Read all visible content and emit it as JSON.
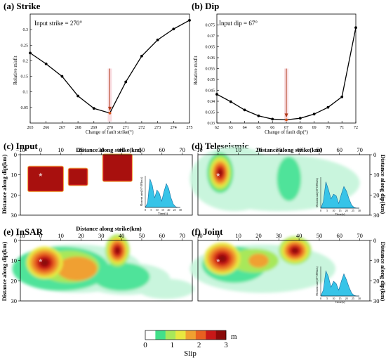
{
  "panels": [
    {
      "id": "a",
      "title": "(a) Strike"
    },
    {
      "id": "b",
      "title": "(b) Dip"
    },
    {
      "id": "c",
      "title": "(c) Input"
    },
    {
      "id": "d",
      "title": "(d) Teleseismic"
    },
    {
      "id": "e",
      "title": "(e) InSAR"
    },
    {
      "id": "f",
      "title": "(f) Joint"
    }
  ],
  "chart_data": [
    {
      "type": "line",
      "title": "(a) Strike",
      "annotation": "Input strike = 270°",
      "xlabel": "Change of fault strike(°)",
      "ylabel": "Relative misfit",
      "xlim": [
        265,
        275
      ],
      "ylim": [
        0.0,
        0.35
      ],
      "xticks": [
        265,
        266,
        267,
        268,
        269,
        270,
        271,
        272,
        273,
        274,
        275
      ],
      "yticks": [
        0.05,
        0.1,
        0.15,
        0.2,
        0.25,
        0.3
      ],
      "x": [
        265,
        266,
        267,
        268,
        269,
        270,
        271,
        272,
        273,
        274,
        275
      ],
      "y": [
        0.225,
        0.19,
        0.15,
        0.087,
        0.047,
        0.032,
        0.132,
        0.215,
        0.267,
        0.302,
        0.33
      ],
      "marker_x": 270,
      "colors": {
        "line": "#000000",
        "arrow": "#b03a1a"
      }
    },
    {
      "type": "line",
      "title": "(b) Dip",
      "annotation": "Input dip = 67°",
      "xlabel": "Change of fault dip(°)",
      "ylabel": "Relative misfit",
      "xlim": [
        62,
        72
      ],
      "ylim": [
        0.03,
        0.08
      ],
      "xticks": [
        62,
        63,
        64,
        65,
        66,
        67,
        68,
        69,
        70,
        71,
        72
      ],
      "yticks": [
        0.03,
        0.035,
        0.04,
        0.045,
        0.05,
        0.055,
        0.06,
        0.065,
        0.07,
        0.075
      ],
      "x": [
        62,
        63,
        64,
        65,
        66,
        67,
        68,
        69,
        70,
        71,
        72
      ],
      "y": [
        0.0432,
        0.0398,
        0.036,
        0.0333,
        0.0318,
        0.0315,
        0.0322,
        0.0341,
        0.0372,
        0.042,
        0.0738
      ],
      "marker_x": 67,
      "colors": {
        "line": "#000000",
        "arrow": "#b03a1a"
      }
    },
    {
      "type": "heatmap",
      "title": "(c) Input",
      "xlabel": "Distance along strike(km)",
      "ylabel": "Distance along dip(km)",
      "xlim": [
        -10,
        75
      ],
      "ylim": [
        0,
        30
      ],
      "xticks": [
        -10,
        0,
        10,
        20,
        30,
        40,
        50,
        60,
        70
      ],
      "yticks": [
        0,
        10,
        20,
        30
      ],
      "patches": [
        {
          "x": [
            -6,
            11
          ],
          "y": [
            6,
            18
          ],
          "slip": 3
        },
        {
          "x": [
            14,
            23
          ],
          "y": [
            7,
            15
          ],
          "slip": 3
        },
        {
          "x": [
            31,
            45
          ],
          "y": [
            0,
            13
          ],
          "slip": 3
        }
      ],
      "hypocenter": [
        0,
        10
      ],
      "inset": {
        "ylabel": "Moment rate(10^18Nm/s)",
        "xlabel": "Time(s)",
        "xticks": [
          0,
          5,
          10,
          15,
          20,
          25,
          30
        ],
        "t": [
          0,
          2,
          4,
          6,
          8,
          10,
          12,
          14,
          16,
          18,
          20,
          22,
          24,
          26,
          28,
          30
        ],
        "rate": [
          0,
          0.15,
          0.9,
          0.7,
          0.3,
          0.55,
          0.45,
          0.2,
          0.5,
          0.75,
          0.6,
          0.3,
          0.1,
          0.02,
          0,
          0
        ]
      }
    },
    {
      "type": "heatmap",
      "title": "(d) Teleseismic",
      "xlabel": "Distance along strike(km)",
      "ylabel": "Distance along dip(km)",
      "xlim": [
        -10,
        75
      ],
      "ylim": [
        0,
        30
      ],
      "xticks": [
        -10,
        0,
        10,
        20,
        30,
        40,
        50,
        60,
        70
      ],
      "yticks": [
        0,
        10,
        20,
        30
      ],
      "hypocenter": [
        0,
        10
      ],
      "inset": {
        "ylabel": "Moment rate(10^18Nm/s)",
        "xlabel": "Time(s)",
        "xticks": [
          0,
          5,
          10,
          15,
          20,
          25,
          30
        ],
        "t": [
          0,
          2,
          4,
          6,
          8,
          10,
          12,
          14,
          16,
          18,
          20,
          22,
          24,
          26,
          28,
          30
        ],
        "rate": [
          0,
          0.2,
          0.85,
          0.6,
          0.3,
          0.45,
          0.4,
          0.15,
          0.45,
          0.7,
          0.55,
          0.3,
          0.1,
          0.02,
          0,
          0
        ]
      }
    },
    {
      "type": "heatmap",
      "title": "(e) InSAR",
      "xlabel": "Distance along strike(km)",
      "ylabel": "Distance along dip(km)",
      "xlim": [
        -10,
        75
      ],
      "ylim": [
        0,
        30
      ],
      "xticks": [
        -10,
        0,
        10,
        20,
        30,
        40,
        50,
        60,
        70
      ],
      "yticks": [
        0,
        10,
        20,
        30
      ],
      "hypocenter": [
        0,
        10
      ]
    },
    {
      "type": "heatmap",
      "title": "(f) Joint",
      "xlabel": "Distance along strike(km)",
      "ylabel": "Distance along dip(km)",
      "xlim": [
        -10,
        75
      ],
      "ylim": [
        0,
        30
      ],
      "xticks": [
        -10,
        0,
        10,
        20,
        30,
        40,
        50,
        60,
        70
      ],
      "yticks": [
        0,
        10,
        20,
        30
      ],
      "hypocenter": [
        0,
        10
      ],
      "inset": {
        "ylabel": "Moment rate(10^18Nm/s)",
        "xlabel": "Time(s)",
        "xticks": [
          0,
          5,
          10,
          15,
          20,
          25,
          30
        ],
        "t": [
          0,
          2,
          4,
          6,
          8,
          10,
          12,
          14,
          16,
          18,
          20,
          22,
          24,
          26,
          28,
          30
        ],
        "rate": [
          0,
          0.2,
          0.85,
          0.65,
          0.3,
          0.5,
          0.42,
          0.2,
          0.5,
          0.75,
          0.55,
          0.3,
          0.1,
          0.02,
          0,
          0
        ]
      }
    }
  ],
  "colorbar": {
    "label": "Slip",
    "unit": "m",
    "range": [
      0,
      3
    ],
    "ticks": [
      0,
      1,
      2,
      3
    ],
    "colors": [
      "#ffffff",
      "#42e08a",
      "#a8e85a",
      "#e8e840",
      "#f0a030",
      "#e86020",
      "#c81818",
      "#8a0a0a"
    ]
  }
}
